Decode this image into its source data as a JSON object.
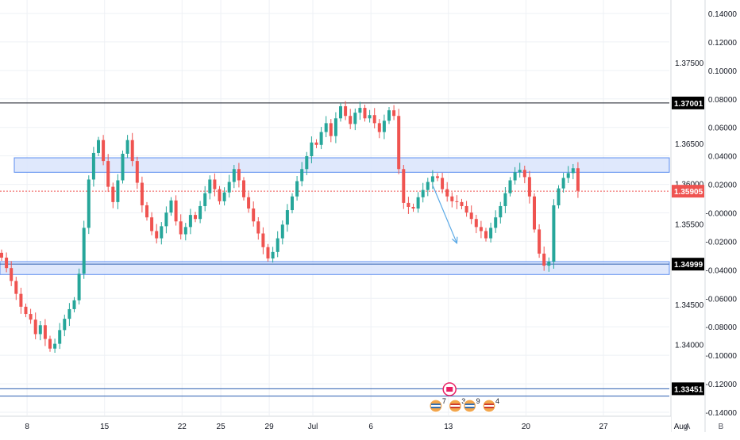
{
  "chart_data": {
    "type": "candlestick",
    "instrument": "",
    "colors": {
      "up": "#26a69a",
      "down": "#ef5350",
      "zone_fill": "#d9e4fb",
      "zone_border": "#5b8def",
      "level_line": "#131722",
      "current_price": "#ef5350",
      "grid": "#eef1f5",
      "axis_text": "#131722",
      "arrow": "#5aa9e6",
      "event_ring": "#e91e63"
    },
    "price_axis": {
      "range": [
        1.3312,
        1.3828
      ],
      "ticks": [
        "1.37500",
        "1.36500",
        "1.36000",
        "1.35500",
        "1.34500",
        "1.34000"
      ],
      "tick_values": [
        1.375,
        1.365,
        1.36,
        1.355,
        1.345,
        1.34
      ],
      "level_labels": [
        "1.37001",
        "1.34999",
        "1.33451"
      ],
      "level_values": [
        1.37001,
        1.34999,
        1.33451
      ],
      "current_price_label": "1.35905",
      "current_price": 1.35905
    },
    "secondary_axis": {
      "ticks": [
        "0.14000",
        "0.12000",
        "0.10000",
        "0.08000",
        "0.06000",
        "0.04000",
        "0.02000",
        "-0.00000",
        "-0.02000",
        "-0.04000",
        "-0.06000",
        "-0.08000",
        "-0.10000",
        "-0.12000",
        "-0.14000"
      ],
      "tick_values": [
        0.14,
        0.12,
        0.1,
        0.08,
        0.06,
        0.04,
        0.02,
        0.0,
        -0.02,
        -0.04,
        -0.06,
        -0.08,
        -0.1,
        -0.12,
        -0.14
      ]
    },
    "time_axis": {
      "labels": [
        "8",
        "15",
        "22",
        "25",
        "29",
        "Jul",
        "6",
        "13",
        "20",
        "27",
        "Aug"
      ],
      "index": [
        1,
        17,
        33,
        41,
        51,
        60,
        72,
        88,
        104,
        120,
        136
      ],
      "last_index": 139
    },
    "zones": [
      {
        "name": "resistance",
        "from": 1.3614,
        "to": 1.3632
      },
      {
        "name": "support",
        "from": 1.3487,
        "to": 1.3503
      }
    ],
    "horizontal_lines": [
      {
        "price": 1.37001,
        "style": "solid"
      },
      {
        "price": 1.34999,
        "style": "solid"
      },
      {
        "price": 1.33451,
        "style": "solid"
      },
      {
        "price": 1.3336,
        "style": "solid"
      },
      {
        "price": 1.35905,
        "style": "dotted"
      }
    ],
    "arrow": {
      "from": {
        "i": 89,
        "price": 1.3598
      },
      "to": {
        "i": 94,
        "price": 1.3526
      }
    },
    "events": [
      {
        "i": 89,
        "badge": "7"
      },
      {
        "i": 93,
        "badge": "3"
      },
      {
        "i": 96,
        "badge": "9"
      },
      {
        "i": 100,
        "badge": "4"
      }
    ],
    "bottom_buttons": {
      "auto": "A",
      "bar": "B"
    },
    "candles": {
      "start_index": 0,
      "closes": [
        1.3508,
        1.3495,
        1.3479,
        1.3463,
        1.3447,
        1.3438,
        1.3431,
        1.3413,
        1.3424,
        1.3407,
        1.3395,
        1.3401,
        1.3418,
        1.3432,
        1.3444,
        1.3455,
        1.3488,
        1.3545,
        1.3605,
        1.3638,
        1.3654,
        1.3628,
        1.3596,
        1.3577,
        1.3604,
        1.3637,
        1.3654,
        1.3628,
        1.3601,
        1.3573,
        1.3558,
        1.3541,
        1.3532,
        1.3547,
        1.3564,
        1.3579,
        1.3553,
        1.3537,
        1.3546,
        1.3561,
        1.3556,
        1.3572,
        1.3588,
        1.3605,
        1.3593,
        1.3578,
        1.3589,
        1.3602,
        1.3618,
        1.3604,
        1.3583,
        1.3569,
        1.3553,
        1.3538,
        1.3521,
        1.3507,
        1.3515,
        1.3532,
        1.3549,
        1.3567,
        1.3584,
        1.3603,
        1.3618,
        1.3634,
        1.3651,
        1.3648,
        1.3664,
        1.3675,
        1.3659,
        1.3681,
        1.3696,
        1.3684,
        1.3674,
        1.3688,
        1.3694,
        1.3681,
        1.3685,
        1.3675,
        1.3664,
        1.3678,
        1.3691,
        1.3684,
        1.3618,
        1.3576,
        1.3571,
        1.3569,
        1.3583,
        1.3592,
        1.3602,
        1.3609,
        1.3607,
        1.3593,
        1.3584,
        1.3578,
        1.3577,
        1.3572,
        1.3564,
        1.3556,
        1.3546,
        1.3541,
        1.3532,
        1.3545,
        1.3558,
        1.3572,
        1.3588,
        1.3604,
        1.3614,
        1.3617,
        1.3608,
        1.3584,
        1.3543,
        1.3513,
        1.3498,
        1.3503,
        1.3573,
        1.3594,
        1.3607,
        1.3613,
        1.3619,
        1.3591
      ]
    }
  }
}
